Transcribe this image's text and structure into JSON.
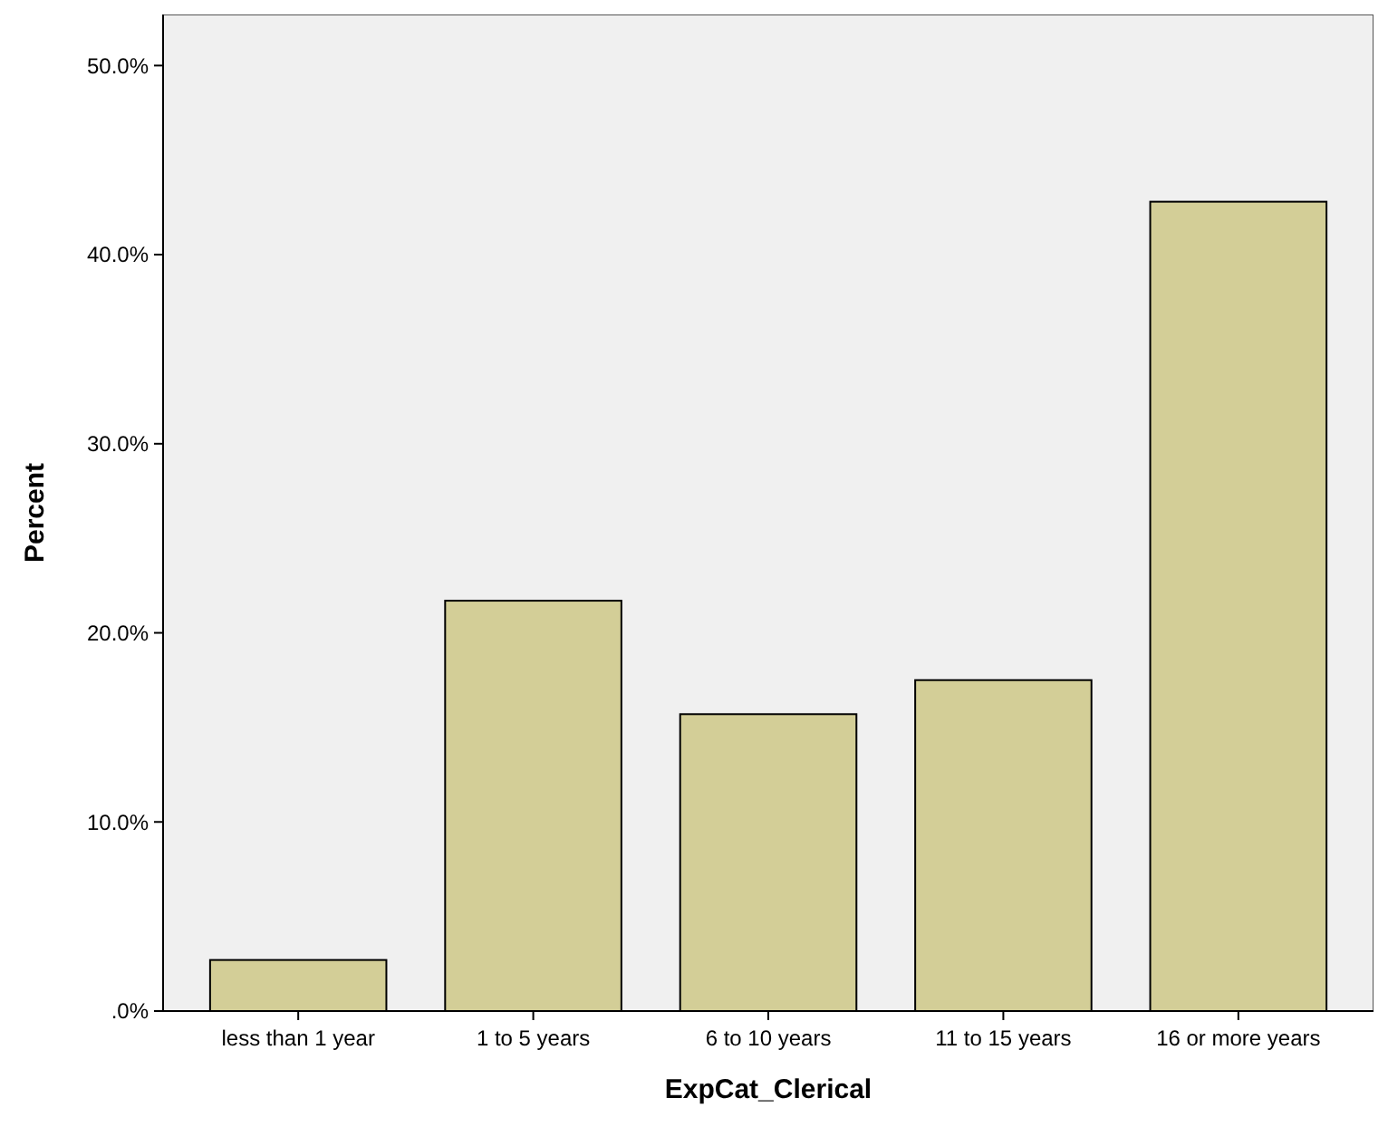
{
  "chart_data": {
    "type": "bar",
    "xlabel": "ExpCat_Clerical",
    "ylabel": "Percent",
    "categories": [
      "less than 1 year",
      "1 to 5 years",
      "6 to 10 years",
      "11 to 15 years",
      "16 or more years"
    ],
    "values": [
      2.7,
      21.7,
      15.7,
      17.5,
      42.8
    ],
    "color": "#d3ce97",
    "ylim": [
      0,
      52.7
    ],
    "yticks": [
      {
        "value": 0,
        "label": ".0%"
      },
      {
        "value": 10,
        "label": "10.0%"
      },
      {
        "value": 20,
        "label": "20.0%"
      },
      {
        "value": 30,
        "label": "30.0%"
      },
      {
        "value": 40,
        "label": "40.0%"
      },
      {
        "value": 50,
        "label": "50.0%"
      }
    ],
    "grid": false
  }
}
